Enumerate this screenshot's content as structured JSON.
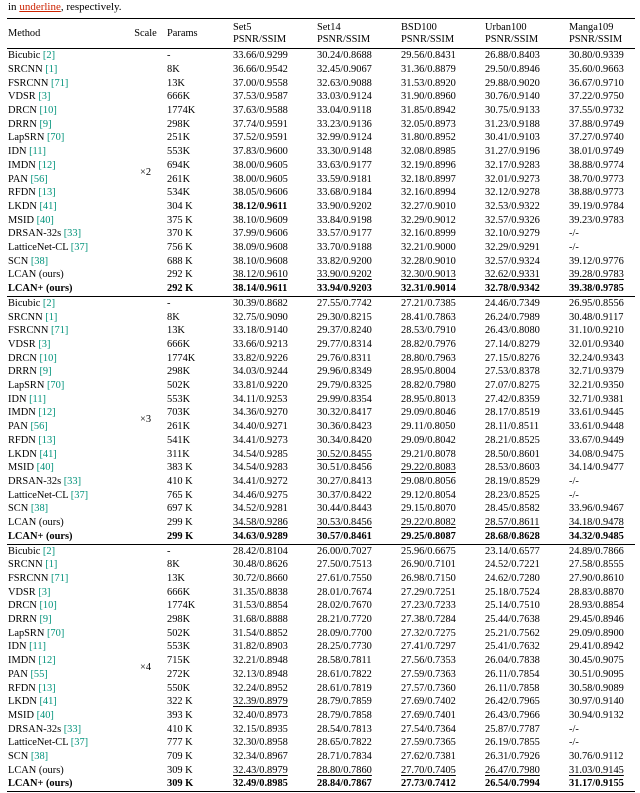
{
  "caption": {
    "prefix": "in ",
    "highlight": "underline",
    "suffix": ", respectively."
  },
  "colors": {
    "cite": "#00927a",
    "caption_highlight": "#cc2200"
  },
  "table": {
    "headers": {
      "method": "Method",
      "scale": "Scale",
      "params": "Params",
      "datasets": [
        {
          "name": "Set5",
          "metric": "PSNR/SSIM"
        },
        {
          "name": "Set14",
          "metric": "PSNR/SSIM"
        },
        {
          "name": "BSD100",
          "metric": "PSNR/SSIM"
        },
        {
          "name": "Urban100",
          "metric": "PSNR/SSIM"
        },
        {
          "name": "Manga109",
          "metric": "PSNR/SSIM"
        }
      ]
    },
    "groups": [
      {
        "scale": "×2",
        "rows": [
          {
            "method": "Bicubic",
            "cite": "[2]",
            "params": "-",
            "values": [
              "33.66/0.9299",
              "30.24/0.8688",
              "29.56/0.8431",
              "26.88/0.8403",
              "30.80/0.9339"
            ]
          },
          {
            "method": "SRCNN",
            "cite": "[1]",
            "params": "8K",
            "values": [
              "36.66/0.9542",
              "32.45/0.9067",
              "31.36/0.8879",
              "29.50/0.8946",
              "35.60/0.9663"
            ]
          },
          {
            "method": "FSRCNN",
            "cite": "[71]",
            "params": "13K",
            "values": [
              "37.00/0.9558",
              "32.63/0.9088",
              "31.53/0.8920",
              "29.88/0.9020",
              "36.67/0.9710"
            ]
          },
          {
            "method": "VDSR",
            "cite": "[3]",
            "params": "666K",
            "values": [
              "37.53/0.9587",
              "33.03/0.9124",
              "31.90/0.8960",
              "30.76/0.9140",
              "37.22/0.9750"
            ]
          },
          {
            "method": "DRCN",
            "cite": "[10]",
            "params": "1774K",
            "values": [
              "37.63/0.9588",
              "33.04/0.9118",
              "31.85/0.8942",
              "30.75/0.9133",
              "37.55/0.9732"
            ]
          },
          {
            "method": "DRRN",
            "cite": "[9]",
            "params": "298K",
            "values": [
              "37.74/0.9591",
              "33.23/0.9136",
              "32.05/0.8973",
              "31.23/0.9188",
              "37.88/0.9749"
            ]
          },
          {
            "method": "LapSRN",
            "cite": "[70]",
            "params": "251K",
            "values": [
              "37.52/0.9591",
              "32.99/0.9124",
              "31.80/0.8952",
              "30.41/0.9103",
              "37.27/0.9740"
            ]
          },
          {
            "method": "IDN",
            "cite": "[11]",
            "params": "553K",
            "values": [
              "37.83/0.9600",
              "33.30/0.9148",
              "32.08/0.8985",
              "31.27/0.9196",
              "38.01/0.9749"
            ]
          },
          {
            "method": "IMDN",
            "cite": "[12]",
            "params": "694K",
            "values": [
              "38.00/0.9605",
              "33.63/0.9177",
              "32.19/0.8996",
              "32.17/0.9283",
              "38.88/0.9774"
            ]
          },
          {
            "method": "PAN",
            "cite": "[56]",
            "params": "261K",
            "values": [
              "38.00/0.9605",
              "33.59/0.9181",
              "32.18/0.8997",
              "32.01/0.9273",
              "38.70/0.9773"
            ]
          },
          {
            "method": "RFDN",
            "cite": "[13]",
            "params": "534K",
            "values": [
              "38.05/0.9606",
              "33.68/0.9184",
              "32.16/0.8994",
              "32.12/0.9278",
              "38.88/0.9773"
            ]
          },
          {
            "method": "LKDN",
            "cite": "[41]",
            "params": "304 K",
            "values": [
              "38.12/0.9611",
              "33.90/0.9202",
              "32.27/0.9010",
              "32.53/0.9322",
              "39.19/0.9784"
            ],
            "vs": [
              "b",
              "",
              "",
              "",
              ""
            ]
          },
          {
            "method": "MSID",
            "cite": "[40]",
            "params": "375 K",
            "values": [
              "38.10/0.9609",
              "33.84/0.9198",
              "32.29/0.9012",
              "32.57/0.9326",
              "39.23/0.9783"
            ]
          },
          {
            "method": "DRSAN-32s",
            "cite": "[33]",
            "params": "370 K",
            "values": [
              "37.99/0.9606",
              "33.57/0.9177",
              "32.16/0.8999",
              "32.10/0.9279",
              "-/-"
            ]
          },
          {
            "method": "LatticeNet-CL",
            "cite": "[37]",
            "params": "756 K",
            "values": [
              "38.09/0.9608",
              "33.70/0.9188",
              "32.21/0.9000",
              "32.29/0.9291",
              "-/-"
            ]
          },
          {
            "method": "SCN",
            "cite": "[38]",
            "params": "688 K",
            "values": [
              "38.10/0.9608",
              "33.82/0.9200",
              "32.28/0.9010",
              "32.57/0.9324",
              "39.12/0.9776"
            ]
          },
          {
            "method": "LCAN (ours)",
            "cite": "",
            "params": "292 K",
            "values": [
              "38.12/0.9610",
              "33.90/0.9202",
              "32.30/0.9013",
              "32.62/0.9331",
              "39.28/0.9783"
            ],
            "vs": [
              "u",
              "u",
              "u",
              "u",
              "u"
            ]
          },
          {
            "method": "LCAN+ (ours)",
            "cite": "",
            "params": "292 K",
            "values": [
              "38.14/0.9611",
              "33.94/0.9203",
              "32.31/0.9014",
              "32.78/0.9342",
              "39.38/0.9785"
            ],
            "bold": true
          }
        ]
      },
      {
        "scale": "×3",
        "rows": [
          {
            "method": "Bicubic",
            "cite": "[2]",
            "params": "-",
            "values": [
              "30.39/0.8682",
              "27.55/0.7742",
              "27.21/0.7385",
              "24.46/0.7349",
              "26.95/0.8556"
            ]
          },
          {
            "method": "SRCNN",
            "cite": "[1]",
            "params": "8K",
            "values": [
              "32.75/0.9090",
              "29.30/0.8215",
              "28.41/0.7863",
              "26.24/0.7989",
              "30.48/0.9117"
            ]
          },
          {
            "method": "FSRCNN",
            "cite": "[71]",
            "params": "13K",
            "values": [
              "33.18/0.9140",
              "29.37/0.8240",
              "28.53/0.7910",
              "26.43/0.8080",
              "31.10/0.9210"
            ]
          },
          {
            "method": "VDSR",
            "cite": "[3]",
            "params": "666K",
            "values": [
              "33.66/0.9213",
              "29.77/0.8314",
              "28.82/0.7976",
              "27.14/0.8279",
              "32.01/0.9340"
            ]
          },
          {
            "method": "DRCN",
            "cite": "[10]",
            "params": "1774K",
            "values": [
              "33.82/0.9226",
              "29.76/0.8311",
              "28.80/0.7963",
              "27.15/0.8276",
              "32.24/0.9343"
            ]
          },
          {
            "method": "DRRN",
            "cite": "[9]",
            "params": "298K",
            "values": [
              "34.03/0.9244",
              "29.96/0.8349",
              "28.95/0.8004",
              "27.53/0.8378",
              "32.71/0.9379"
            ]
          },
          {
            "method": "LapSRN",
            "cite": "[70]",
            "params": "502K",
            "values": [
              "33.81/0.9220",
              "29.79/0.8325",
              "28.82/0.7980",
              "27.07/0.8275",
              "32.21/0.9350"
            ]
          },
          {
            "method": "IDN",
            "cite": "[11]",
            "params": "553K",
            "values": [
              "34.11/0.9253",
              "29.99/0.8354",
              "28.95/0.8013",
              "27.42/0.8359",
              "32.71/0.9381"
            ]
          },
          {
            "method": "IMDN",
            "cite": "[12]",
            "params": "703K",
            "values": [
              "34.36/0.9270",
              "30.32/0.8417",
              "29.09/0.8046",
              "28.17/0.8519",
              "33.61/0.9445"
            ]
          },
          {
            "method": "PAN",
            "cite": "[56]",
            "params": "261K",
            "values": [
              "34.40/0.9271",
              "30.36/0.8423",
              "29.11/0.8050",
              "28.11/0.8511",
              "33.61/0.9448"
            ]
          },
          {
            "method": "RFDN",
            "cite": "[13]",
            "params": "541K",
            "values": [
              "34.41/0.9273",
              "30.34/0.8420",
              "29.09/0.8042",
              "28.21/0.8525",
              "33.67/0.9449"
            ]
          },
          {
            "method": "LKDN",
            "cite": "[41]",
            "params": "311K",
            "values": [
              "34.54/0.9285",
              "30.52/0.8455",
              "29.21/0.8078",
              "28.50/0.8601",
              "34.08/0.9475"
            ],
            "vs": [
              "",
              "u",
              "",
              "",
              ""
            ]
          },
          {
            "method": "MSID",
            "cite": "[40]",
            "params": "383 K",
            "values": [
              "34.54/0.9283",
              "30.51/0.8456",
              "29.22/0.8083",
              "28.53/0.8603",
              "34.14/0.9477"
            ],
            "vs": [
              "",
              "",
              "u",
              "",
              ""
            ]
          },
          {
            "method": "DRSAN-32s",
            "cite": "[33]",
            "params": "410 K",
            "values": [
              "34.41/0.9272",
              "30.27/0.8413",
              "29.08/0.8056",
              "28.19/0.8529",
              "-/-"
            ]
          },
          {
            "method": "LatticeNet-CL",
            "cite": "[37]",
            "params": "765 K",
            "values": [
              "34.46/0.9275",
              "30.37/0.8422",
              "29.12/0.8054",
              "28.23/0.8525",
              "-/-"
            ]
          },
          {
            "method": "SCN",
            "cite": "[38]",
            "params": "697 K",
            "values": [
              "34.52/0.9281",
              "30.44/0.8443",
              "29.15/0.8070",
              "28.45/0.8582",
              "33.96/0.9467"
            ]
          },
          {
            "method": "LCAN (ours)",
            "cite": "",
            "params": "299 K",
            "values": [
              "34.58/0.9286",
              "30.53/0.8456",
              "29.22/0.8082",
              "28.57/0.8611",
              "34.18/0.9478"
            ],
            "vs": [
              "u",
              "u",
              "u",
              "u",
              "u"
            ]
          },
          {
            "method": "LCAN+ (ours)",
            "cite": "",
            "params": "299 K",
            "values": [
              "34.63/0.9289",
              "30.57/0.8461",
              "29.25/0.8087",
              "28.68/0.8628",
              "34.32/0.9485"
            ],
            "bold": true
          }
        ]
      },
      {
        "scale": "×4",
        "rows": [
          {
            "method": "Bicubic",
            "cite": "[2]",
            "params": "-",
            "values": [
              "28.42/0.8104",
              "26.00/0.7027",
              "25.96/0.6675",
              "23.14/0.6577",
              "24.89/0.7866"
            ]
          },
          {
            "method": "SRCNN",
            "cite": "[1]",
            "params": "8K",
            "values": [
              "30.48/0.8626",
              "27.50/0.7513",
              "26.90/0.7101",
              "24.52/0.7221",
              "27.58/0.8555"
            ]
          },
          {
            "method": "FSRCNN",
            "cite": "[71]",
            "params": "13K",
            "values": [
              "30.72/0.8660",
              "27.61/0.7550",
              "26.98/0.7150",
              "24.62/0.7280",
              "27.90/0.8610"
            ]
          },
          {
            "method": "VDSR",
            "cite": "[3]",
            "params": "666K",
            "values": [
              "31.35/0.8838",
              "28.01/0.7674",
              "27.29/0.7251",
              "25.18/0.7524",
              "28.83/0.8870"
            ]
          },
          {
            "method": "DRCN",
            "cite": "[10]",
            "params": "1774K",
            "values": [
              "31.53/0.8854",
              "28.02/0.7670",
              "27.23/0.7233",
              "25.14/0.7510",
              "28.93/0.8854"
            ]
          },
          {
            "method": "DRRN",
            "cite": "[9]",
            "params": "298K",
            "values": [
              "31.68/0.8888",
              "28.21/0.7720",
              "27.38/0.7284",
              "25.44/0.7638",
              "29.45/0.8946"
            ]
          },
          {
            "method": "LapSRN",
            "cite": "[70]",
            "params": "502K",
            "values": [
              "31.54/0.8852",
              "28.09/0.7700",
              "27.32/0.7275",
              "25.21/0.7562",
              "29.09/0.8900"
            ]
          },
          {
            "method": "IDN",
            "cite": "[11]",
            "params": "553K",
            "values": [
              "31.82/0.8903",
              "28.25/0.7730",
              "27.41/0.7297",
              "25.41/0.7632",
              "29.41/0.8942"
            ]
          },
          {
            "method": "IMDN",
            "cite": "[12]",
            "params": "715K",
            "values": [
              "32.21/0.8948",
              "28.58/0.7811",
              "27.56/0.7353",
              "26.04/0.7838",
              "30.45/0.9075"
            ]
          },
          {
            "method": "PAN",
            "cite": "[55]",
            "params": "272K",
            "values": [
              "32.13/0.8948",
              "28.61/0.7822",
              "27.59/0.7363",
              "26.11/0.7854",
              "30.51/0.9095"
            ]
          },
          {
            "method": "RFDN",
            "cite": "[13]",
            "params": "550K",
            "values": [
              "32.24/0.8952",
              "28.61/0.7819",
              "27.57/0.7360",
              "26.11/0.7858",
              "30.58/0.9089"
            ]
          },
          {
            "method": "LKDN",
            "cite": "[41]",
            "params": "322 K",
            "values": [
              "32.39/0.8979",
              "28.79/0.7859",
              "27.69/0.7402",
              "26.42/0.7965",
              "30.97/0.9140"
            ],
            "vs": [
              "u",
              "",
              "",
              "",
              ""
            ]
          },
          {
            "method": "MSID",
            "cite": "[40]",
            "params": "393 K",
            "values": [
              "32.40/0.8973",
              "28.79/0.7858",
              "27.69/0.7401",
              "26.43/0.7966",
              "30.94/0.9132"
            ]
          },
          {
            "method": "DRSAN-32s",
            "cite": "[33]",
            "params": "410 K",
            "values": [
              "32.15/0.8935",
              "28.54/0.7813",
              "27.54/0.7364",
              "25.87/0.7787",
              "-/-"
            ]
          },
          {
            "method": "LatticeNet-CL",
            "cite": "[37]",
            "params": "777 K",
            "values": [
              "32.30/0.8958",
              "28.65/0.7822",
              "27.59/0.7365",
              "26.19/0.7855",
              "-/-"
            ]
          },
          {
            "method": "SCN",
            "cite": "[38]",
            "params": "709 K",
            "values": [
              "32.34/0.8967",
              "28.71/0.7834",
              "27.62/0.7381",
              "26.31/0.7926",
              "30.76/0.9112"
            ]
          },
          {
            "method": "LCAN (ours)",
            "cite": "",
            "params": "309 K",
            "values": [
              "32.43/0.8979",
              "28.80/0.7860",
              "27.70/0.7405",
              "26.47/0.7980",
              "31.03/0.9145"
            ],
            "vs": [
              "u",
              "u",
              "u",
              "u",
              "u"
            ]
          },
          {
            "method": "LCAN+ (ours)",
            "cite": "",
            "params": "309 K",
            "values": [
              "32.49/0.8985",
              "28.84/0.7867",
              "27.73/0.7412",
              "26.54/0.7994",
              "31.17/0.9155"
            ],
            "bold": true
          }
        ]
      }
    ]
  }
}
